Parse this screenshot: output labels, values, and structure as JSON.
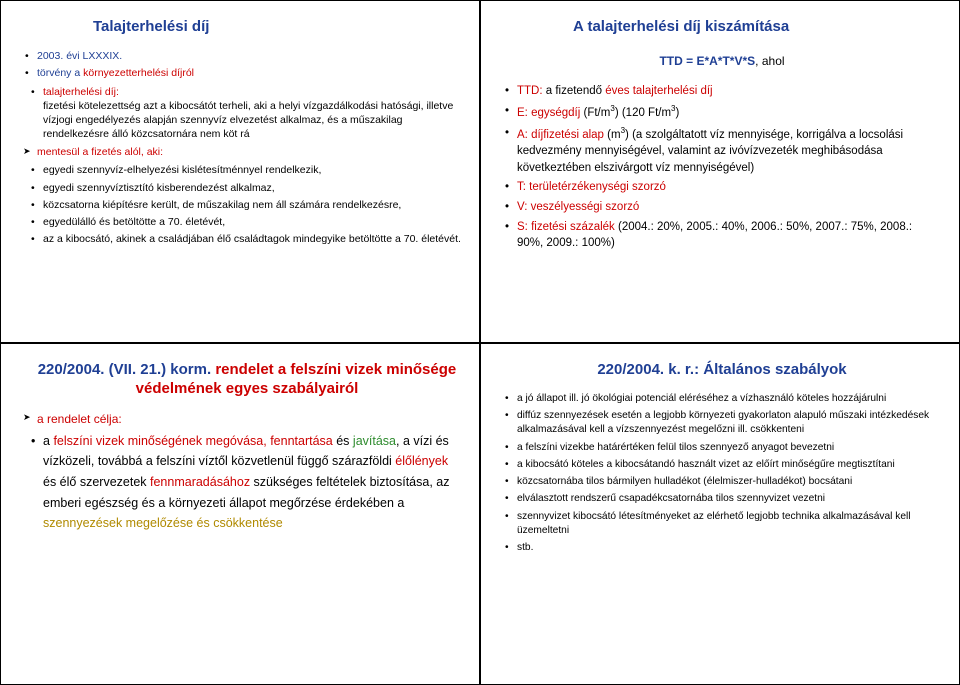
{
  "colors": {
    "blue": "#1f3f94",
    "red": "#cc0000",
    "green": "#2e8b2e",
    "darkyellow": "#b08a00",
    "text": "#000000",
    "background": "#ffffff",
    "border": "#000000"
  },
  "typography": {
    "body_font": "Arial",
    "body_size_pt": 8,
    "title_size_pt": 11,
    "title_weight": "bold"
  },
  "panels": {
    "tl": {
      "title": "Talajterhelési díj",
      "line1": "2003. évi LXXXIX.",
      "line2a": "törvény a ",
      "line2b": "környezetterhelési díjról",
      "sub1": "talajterhelési díj:",
      "sub1_text": "fizetési kötelezettség azt a kibocsátót terheli, aki a helyi vízgazdálkodási hatósági, illetve vízjogi engedélyezés alapján szennyvíz elvezetést alkalmaz, és a műszakilag rendelkezésre álló közcsatornára nem köt rá",
      "sub2_head": "mentesül a fizetés alól, aki:",
      "sub2_items": [
        "egyedi szennyvíz-elhelyezési kislétesítménnyel rendelkezik,",
        "egyedi szennyvíztisztító kisberendezést alkalmaz,",
        "közcsatorna kiépítésre került, de műszakilag nem áll számára rendelkezésre,",
        "egyedülálló és betöltötte a 70. életévét,",
        "az a kibocsátó, akinek a családjában élő családtagok mindegyike betöltötte a 70. életévét."
      ]
    },
    "tr": {
      "title": "A talajterhelési díj kiszámítása",
      "formula_pre": "TTD = E*A*T*V*S",
      "formula_post": ", ahol",
      "items": {
        "ttd_a": "TTD: ",
        "ttd_b": "a fizetendő",
        "ttd_c": " éves talajterhelési díj",
        "e_a": "E: ",
        "e_b": "egységdíj ",
        "e_c": "(Ft/m",
        "e_d": ") (120 Ft/m",
        "e_e": ")",
        "a_a": "A: ",
        "a_b": "díjfizetési alap ",
        "a_c": "(m",
        "a_d": ") (a szolgáltatott víz mennyisége, korrigálva a locsolási kedvezmény mennyiségével, valamint az ivóvízvezeték meghibásodása következtében elszivárgott víz mennyiségével)",
        "t_a": "T: ",
        "t_b": "területérzékenységi szorzó",
        "v_a": "V: ",
        "v_b": "veszélyességi szorzó",
        "s_a": "S: ",
        "s_b": "fizetési százalék ",
        "s_c": "(2004.: 20%, 2005.: 40%, 2006.: 50%, 2007.: 75%, 2008.: 90%, 2009.: 100%)"
      }
    },
    "bl": {
      "title_a": "220/2004. (VII. 21.) korm. ",
      "title_b": "rendelet a felszíni vizek minősége védelmének egyes szabályairól",
      "sub_head": "a rendelet célja:",
      "body_parts": {
        "p1": "a ",
        "p2": "felszíni vizek minőségének megóvása, fenntartása ",
        "p3": "és ",
        "p4": "javítása",
        "p5": ", a vízi és vízközeli, továbbá a felszíni víztől közvetlenül függő szárazföldi ",
        "p6": "élőlények",
        "p7": " és élő szervezetek ",
        "p8": "fennmaradásához ",
        "p9": "szükséges feltételek biztosítása, az emberi egészség és a környezeti állapot megőrzése érdekében a ",
        "p10": "szennyezések megelőzése és csökkentése"
      }
    },
    "br": {
      "title": "220/2004. k. r.: Általános szabályok",
      "items": [
        "a jó állapot ill. jó ökológiai potenciál eléréséhez a vízhasználó köteles hozzájárulni",
        "diffúz szennyezések esetén a legjobb környezeti gyakorlaton alapuló műszaki intézkedések alkalmazásával kell a vízszennyezést megelőzni ill. csökkenteni",
        "a felszíni vizekbe határértéken felül tilos szennyező anyagot bevezetni",
        "a kibocsátó köteles a kibocsátandó használt vizet az előírt minőségűre megtisztítani",
        "közcsatornába tilos bármilyen hulladékot (élelmiszer-hulladékot) bocsátani",
        "elválasztott rendszerű csapadékcsatornába tilos szennyvizet vezetni",
        "szennyvizet kibocsátó létesítményeket az elérhető legjobb technika alkalmazásával kell üzemeltetni",
        "stb."
      ]
    }
  }
}
